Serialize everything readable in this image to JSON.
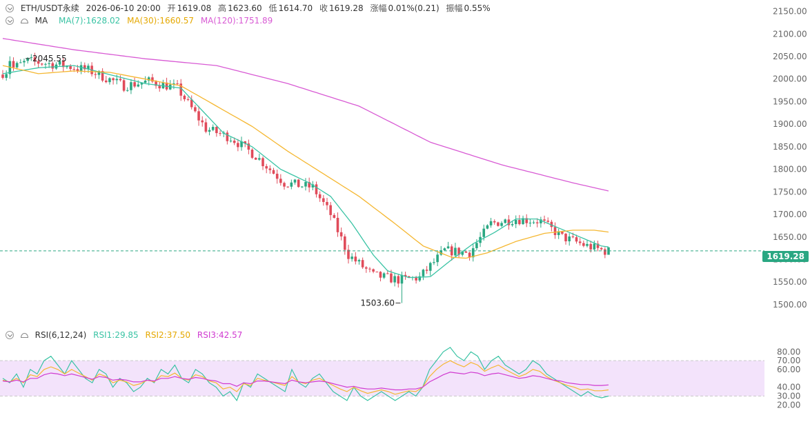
{
  "header": {
    "symbol": "ETH/USDT永续",
    "datetime": "2026-06-10 20:00",
    "open_label": "开",
    "open": "1619.08",
    "high_label": "高",
    "high": "1623.60",
    "low_label": "低",
    "low": "1614.70",
    "close_label": "收",
    "close": "1619.28",
    "change_label": "涨幅",
    "change": "0.01%(0.21)",
    "amplitude_label": "振幅",
    "amplitude": "0.55%"
  },
  "ma_legend": {
    "label": "MA",
    "ma7": "MA(7):1628.02",
    "ma30": "MA(30):1660.57",
    "ma120": "MA(120):1751.89"
  },
  "rsi_legend": {
    "label": "RSI(6,12,24)",
    "rsi1": "RSI1:29.85",
    "rsi2": "RSI2:37.50",
    "rsi3": "RSI3:42.57"
  },
  "current_price_tag": "1619.28",
  "colors": {
    "up": "#2aa782",
    "down": "#e04b5a",
    "ma7": "#39c3a4",
    "ma30": "#f5b731",
    "ma120": "#d85ad4",
    "rsi1": "#39c3a4",
    "rsi2": "#f5b731",
    "rsi3": "#d03ad0",
    "rsi_band": "#f3e3fb",
    "axis_text": "#666666"
  },
  "chart_data": [
    {
      "type": "candlestick",
      "title": "ETH/USDT永续",
      "y_ticks": [
        2150,
        2100,
        2050,
        2000,
        1950,
        1900,
        1850,
        1800,
        1750,
        1700,
        1650,
        1600,
        1550,
        1500
      ],
      "ylim": [
        1480,
        2160
      ],
      "grid": false,
      "annotations": [
        {
          "text": "2045.55",
          "value": 2045.55
        },
        {
          "text": "1503.60",
          "value": 1503.6
        }
      ],
      "current_price": 1619.28,
      "price_path_keypoints": [
        [
          0,
          2010
        ],
        [
          8,
          2040
        ],
        [
          18,
          2030
        ],
        [
          25,
          2020
        ],
        [
          35,
          1985
        ],
        [
          42,
          1995
        ],
        [
          50,
          1980
        ],
        [
          58,
          1890
        ],
        [
          65,
          1870
        ],
        [
          72,
          1830
        ],
        [
          80,
          1770
        ],
        [
          88,
          1760
        ],
        [
          93,
          1700
        ],
        [
          98,
          1610
        ],
        [
          105,
          1565
        ],
        [
          112,
          1555
        ],
        [
          118,
          1560
        ],
        [
          125,
          1620
        ],
        [
          132,
          1615
        ],
        [
          138,
          1680
        ],
        [
          145,
          1690
        ],
        [
          152,
          1685
        ],
        [
          158,
          1650
        ],
        [
          165,
          1630
        ],
        [
          170,
          1619
        ]
      ],
      "ma_keypoints": {
        "MA7": [
          [
            0,
            2012
          ],
          [
            10,
            2025
          ],
          [
            20,
            2030
          ],
          [
            30,
            2010
          ],
          [
            40,
            1990
          ],
          [
            50,
            1980
          ],
          [
            56,
            1930
          ],
          [
            62,
            1880
          ],
          [
            70,
            1850
          ],
          [
            78,
            1800
          ],
          [
            86,
            1770
          ],
          [
            92,
            1740
          ],
          [
            98,
            1680
          ],
          [
            104,
            1610
          ],
          [
            108,
            1575
          ],
          [
            114,
            1560
          ],
          [
            120,
            1562
          ],
          [
            126,
            1600
          ],
          [
            132,
            1635
          ],
          [
            138,
            1660
          ],
          [
            144,
            1690
          ],
          [
            150,
            1690
          ],
          [
            156,
            1670
          ],
          [
            162,
            1650
          ],
          [
            168,
            1630
          ],
          [
            170,
            1628
          ]
        ],
        "MA30": [
          [
            0,
            2030
          ],
          [
            10,
            2012
          ],
          [
            20,
            2018
          ],
          [
            30,
            2015
          ],
          [
            40,
            2000
          ],
          [
            50,
            1985
          ],
          [
            60,
            1940
          ],
          [
            70,
            1895
          ],
          [
            80,
            1840
          ],
          [
            90,
            1790
          ],
          [
            100,
            1740
          ],
          [
            110,
            1680
          ],
          [
            118,
            1630
          ],
          [
            126,
            1605
          ],
          [
            130,
            1603
          ],
          [
            136,
            1615
          ],
          [
            144,
            1640
          ],
          [
            152,
            1658
          ],
          [
            160,
            1665
          ],
          [
            166,
            1665
          ],
          [
            170,
            1661
          ]
        ],
        "MA120": [
          [
            0,
            2090
          ],
          [
            20,
            2065
          ],
          [
            40,
            2045
          ],
          [
            60,
            2030
          ],
          [
            80,
            1990
          ],
          [
            100,
            1940
          ],
          [
            110,
            1900
          ],
          [
            120,
            1860
          ],
          [
            140,
            1810
          ],
          [
            160,
            1770
          ],
          [
            170,
            1752
          ]
        ]
      }
    },
    {
      "type": "line",
      "title": "RSI(6,12,24)",
      "y_ticks": [
        80,
        70,
        60,
        40,
        30,
        20
      ],
      "ylim": [
        14,
        88
      ],
      "band": [
        30,
        70
      ],
      "series": [
        {
          "name": "RSI1",
          "values": [
            50,
            45,
            55,
            40,
            60,
            55,
            70,
            75,
            65,
            55,
            70,
            60,
            50,
            45,
            60,
            55,
            40,
            50,
            45,
            35,
            40,
            50,
            45,
            60,
            55,
            65,
            50,
            45,
            60,
            55,
            45,
            40,
            30,
            35,
            25,
            45,
            40,
            55,
            50,
            45,
            40,
            35,
            60,
            45,
            40,
            50,
            55,
            45,
            35,
            30,
            25,
            40,
            30,
            25,
            30,
            35,
            30,
            25,
            30,
            35,
            30,
            40,
            60,
            70,
            80,
            85,
            75,
            70,
            80,
            75,
            60,
            70,
            75,
            65,
            60,
            55,
            60,
            70,
            65,
            55,
            50,
            45,
            40,
            35,
            30,
            35,
            30,
            28,
            30
          ]
        },
        {
          "name": "RSI2",
          "values": [
            48,
            46,
            50,
            45,
            54,
            52,
            60,
            63,
            60,
            55,
            60,
            56,
            52,
            48,
            55,
            52,
            45,
            48,
            46,
            42,
            44,
            48,
            46,
            53,
            52,
            56,
            50,
            48,
            54,
            52,
            47,
            45,
            38,
            40,
            35,
            44,
            42,
            50,
            48,
            46,
            44,
            42,
            52,
            46,
            44,
            48,
            50,
            46,
            42,
            38,
            35,
            40,
            36,
            33,
            35,
            37,
            35,
            32,
            34,
            36,
            35,
            40,
            52,
            60,
            66,
            70,
            66,
            63,
            68,
            65,
            58,
            62,
            65,
            60,
            56,
            52,
            55,
            60,
            58,
            52,
            48,
            45,
            42,
            40,
            37,
            38,
            36,
            36,
            37
          ]
        },
        {
          "name": "RSI3",
          "values": [
            47,
            46,
            48,
            46,
            50,
            50,
            54,
            56,
            55,
            53,
            55,
            53,
            51,
            49,
            52,
            51,
            48,
            49,
            48,
            46,
            46,
            48,
            47,
            50,
            50,
            52,
            50,
            49,
            51,
            50,
            48,
            47,
            44,
            44,
            41,
            45,
            44,
            47,
            47,
            46,
            45,
            44,
            48,
            46,
            45,
            46,
            47,
            46,
            44,
            42,
            40,
            41,
            39,
            38,
            38,
            39,
            38,
            37,
            37,
            38,
            38,
            40,
            46,
            50,
            54,
            57,
            56,
            55,
            57,
            56,
            53,
            55,
            56,
            54,
            52,
            50,
            51,
            53,
            52,
            50,
            48,
            47,
            45,
            44,
            43,
            43,
            42,
            42,
            42.57
          ]
        }
      ]
    }
  ]
}
